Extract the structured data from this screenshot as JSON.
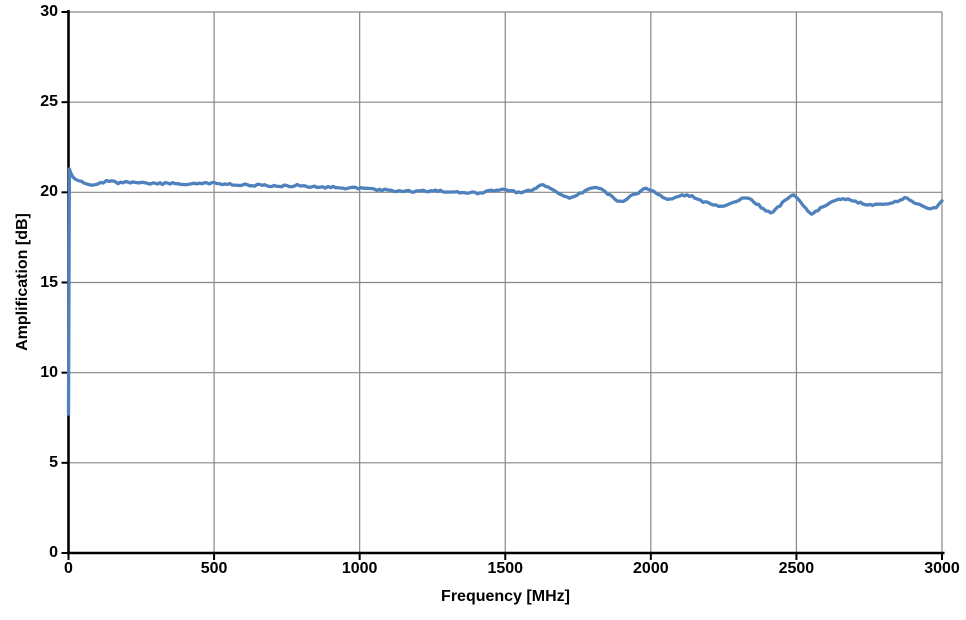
{
  "chart_data": {
    "type": "line",
    "title": "",
    "xlabel": "Frequency [MHz]",
    "ylabel": "Amplification [dB]",
    "xlim": [
      0,
      3000
    ],
    "ylim": [
      0,
      30
    ],
    "x_ticks": [
      0,
      500,
      1000,
      1500,
      2000,
      2500,
      3000
    ],
    "x_tick_labels": [
      "0",
      "500",
      "1000",
      "1500",
      "2000",
      "2500",
      "3000"
    ],
    "y_ticks": [
      0,
      5,
      10,
      15,
      20,
      25,
      30
    ],
    "y_tick_labels": [
      "0",
      "5",
      "10",
      "15",
      "20",
      "25",
      "30"
    ],
    "grid": "both",
    "legend": "none",
    "series": [
      {
        "name": "Amplification",
        "color": "#4f81bd",
        "points": [
          [
            0,
            7.7
          ],
          [
            3,
            21.3
          ],
          [
            15,
            20.85
          ],
          [
            45,
            20.6
          ],
          [
            80,
            20.45
          ],
          [
            110,
            20.5
          ],
          [
            140,
            20.65
          ],
          [
            170,
            20.52
          ],
          [
            205,
            20.57
          ],
          [
            245,
            20.52
          ],
          [
            290,
            20.47
          ],
          [
            340,
            20.5
          ],
          [
            395,
            20.45
          ],
          [
            450,
            20.48
          ],
          [
            500,
            20.5
          ],
          [
            545,
            20.45
          ],
          [
            590,
            20.42
          ],
          [
            640,
            20.4
          ],
          [
            690,
            20.38
          ],
          [
            740,
            20.35
          ],
          [
            795,
            20.37
          ],
          [
            845,
            20.3
          ],
          [
            900,
            20.28
          ],
          [
            950,
            20.22
          ],
          [
            1005,
            20.24
          ],
          [
            1060,
            20.15
          ],
          [
            1110,
            20.1
          ],
          [
            1160,
            20.08
          ],
          [
            1210,
            20.05
          ],
          [
            1260,
            20.08
          ],
          [
            1310,
            20.0
          ],
          [
            1360,
            19.98
          ],
          [
            1405,
            19.95
          ],
          [
            1445,
            20.05
          ],
          [
            1485,
            20.15
          ],
          [
            1520,
            20.08
          ],
          [
            1555,
            20.0
          ],
          [
            1590,
            20.12
          ],
          [
            1630,
            20.4
          ],
          [
            1672,
            20.08
          ],
          [
            1720,
            19.7
          ],
          [
            1765,
            20.02
          ],
          [
            1812,
            20.3
          ],
          [
            1852,
            19.9
          ],
          [
            1895,
            19.5
          ],
          [
            1940,
            19.85
          ],
          [
            1992,
            20.18
          ],
          [
            2048,
            19.65
          ],
          [
            2090,
            19.75
          ],
          [
            2125,
            19.85
          ],
          [
            2180,
            19.5
          ],
          [
            2240,
            19.2
          ],
          [
            2285,
            19.45
          ],
          [
            2330,
            19.7
          ],
          [
            2370,
            19.3
          ],
          [
            2412,
            18.9
          ],
          [
            2452,
            19.4
          ],
          [
            2490,
            19.85
          ],
          [
            2522,
            19.3
          ],
          [
            2552,
            18.82
          ],
          [
            2600,
            19.3
          ],
          [
            2660,
            19.62
          ],
          [
            2712,
            19.45
          ],
          [
            2770,
            19.3
          ],
          [
            2830,
            19.42
          ],
          [
            2872,
            19.67
          ],
          [
            2912,
            19.4
          ],
          [
            2950,
            19.07
          ],
          [
            2980,
            19.2
          ],
          [
            3000,
            19.55
          ]
        ]
      }
    ]
  },
  "colors": {
    "series": "#4f81bd",
    "gridline": "#878787",
    "axis": "#000000",
    "text": "#000000",
    "background": "#ffffff"
  }
}
